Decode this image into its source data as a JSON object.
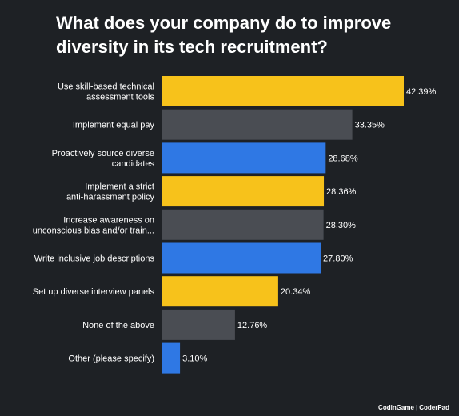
{
  "chart_data": {
    "type": "bar",
    "orientation": "horizontal",
    "title": "What does your company do to improve diversity in its tech recruitment?",
    "categories": [
      "Use skill-based technical assessment tools",
      "Implement equal pay",
      "Proactively source diverse candidates",
      "Implement a strict anti-harassment policy",
      "Increase awareness on unconscious bias and/or train...",
      "Write inclusive job descriptions",
      "Set up diverse interview panels",
      "None of the above",
      "Other (please specify)"
    ],
    "label_lines": [
      [
        "Use skill-based technical",
        "assessment tools"
      ],
      [
        "Implement equal pay"
      ],
      [
        "Proactively source diverse",
        "candidates"
      ],
      [
        "Implement a strict",
        "anti-harassment policy"
      ],
      [
        "Increase awareness on",
        "unconscious bias and/or train..."
      ],
      [
        "Write inclusive job descriptions"
      ],
      [
        "Set up diverse interview panels"
      ],
      [
        "None of the above"
      ],
      [
        "Other (please specify)"
      ]
    ],
    "values": [
      42.39,
      33.35,
      28.68,
      28.36,
      28.3,
      27.8,
      20.34,
      12.76,
      3.1
    ],
    "value_labels": [
      "42.39%",
      "33.35%",
      "28.68%",
      "28.36%",
      "28.30%",
      "27.80%",
      "20.34%",
      "12.76%",
      "3.10%"
    ],
    "colors": [
      "#f7c21b",
      "#4a4d53",
      "#2f78e4",
      "#f7c21b",
      "#4a4d53",
      "#2f78e4",
      "#f7c21b",
      "#4a4d53",
      "#2f78e4"
    ],
    "xlim": [
      0,
      42.39
    ],
    "grid": false,
    "xlabel": "",
    "ylabel": ""
  },
  "footer": {
    "brand_left": "CodinGame",
    "separator": "|",
    "brand_right": "CoderPad"
  },
  "theme": {
    "background": "#1e2125",
    "text": "#ffffff"
  }
}
